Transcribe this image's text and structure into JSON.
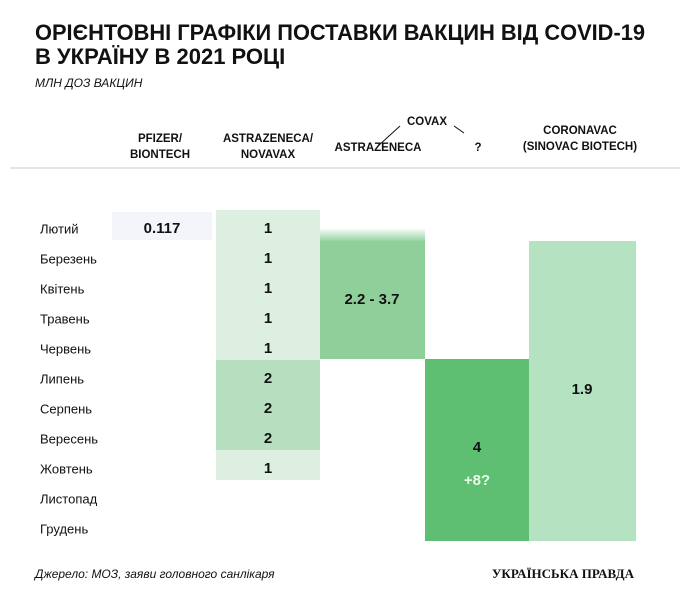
{
  "header": {
    "title": [
      "ОРІЄНТОВНІ ГРАФІКИ ПОСТАВКИ ВАКЦИН ВІД COVID-19",
      "В УКРАЇНУ В 2021 РОЦІ"
    ],
    "subtitle": "МЛН ДОЗ ВАКЦИН"
  },
  "columns": {
    "pfizer": [
      "PFIZER/",
      "BIONTECH"
    ],
    "astrazeneca_novavax": [
      "ASTRAZENECA/",
      "NOVAVAX"
    ],
    "covax": "COVAX",
    "covax_astrazeneca": "ASTRAZENECA",
    "covax_unknown": "?",
    "coronavac": [
      "CORONAVAC",
      "(SINOVAC BIOTECH)"
    ]
  },
  "months": [
    "Лютий",
    "Березень",
    "Квітень",
    "Травень",
    "Червень",
    "Липень",
    "Серпень",
    "Вересень",
    "Жовтень",
    "Листопад",
    "Грудень"
  ],
  "cells": {
    "pfizer": 0.117,
    "astrazeneca_novavax": [
      1,
      1,
      1,
      1,
      1,
      2,
      2,
      2,
      1
    ],
    "covax_astrazeneca": "2.2 - 3.7",
    "covax_unknown": [
      4,
      "+8?"
    ],
    "coronavac": 1.9
  },
  "footer": {
    "source": "Джерело: МОЗ, заяви головного санлікаря",
    "brand": "УКРАЇНСЬКА ПРАВДА"
  }
}
